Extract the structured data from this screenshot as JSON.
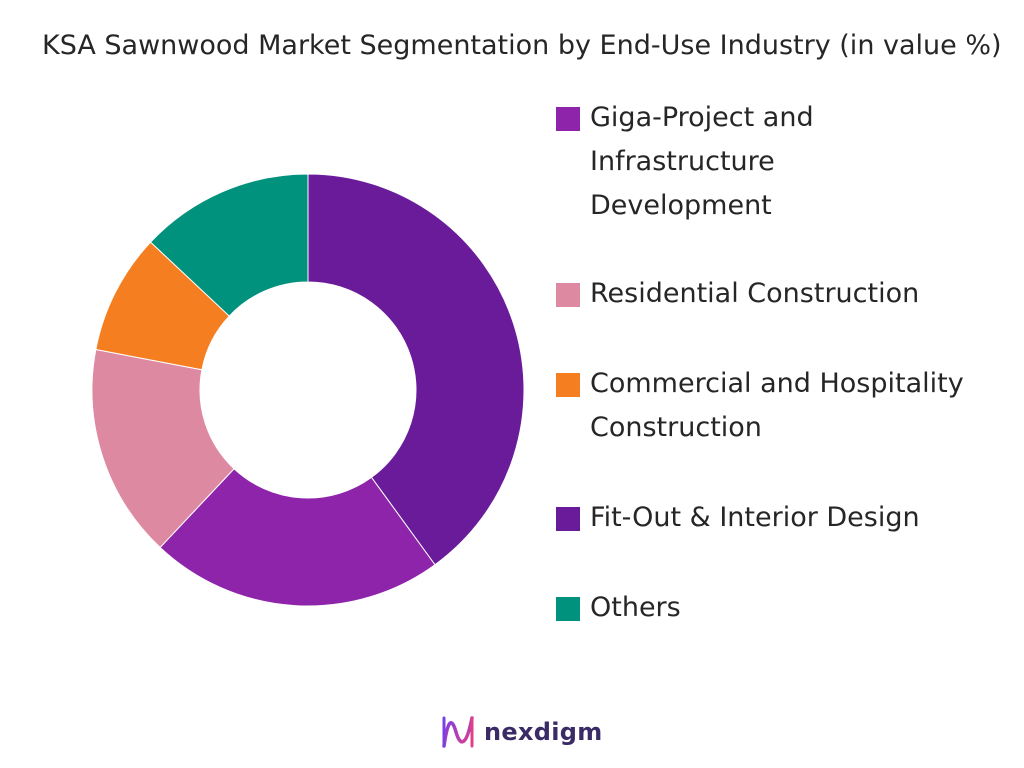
{
  "chart_data": {
    "type": "pie",
    "title": "KSA Sawnwood Market Segmentation by End-Use Industry (in value %)",
    "donut": true,
    "legend_position": "right",
    "slices": [
      {
        "label": "Fit-Out & Interior Design",
        "value": 40,
        "color": "#6a1b9a"
      },
      {
        "label": "Giga-Project and Infrastructure Development",
        "value": 22,
        "color": "#8e24aa"
      },
      {
        "label": "Residential Construction",
        "value": 16,
        "color": "#de89a2"
      },
      {
        "label": "Commercial and Hospitality Construction",
        "value": 9,
        "color": "#f57f20"
      },
      {
        "label": "Others",
        "value": 13,
        "color": "#00927c"
      }
    ],
    "legend": [
      {
        "label": "Giga-Project and Infrastructure Development",
        "color": "#8e24aa"
      },
      {
        "label": "Residential Construction",
        "color": "#de89a2"
      },
      {
        "label": "Commercial and Hospitality Construction",
        "color": "#f57f20"
      },
      {
        "label": "Fit-Out & Interior Design",
        "color": "#6a1b9a"
      },
      {
        "label": "Others",
        "color": "#00927c"
      }
    ]
  },
  "branding": {
    "logo_text": "nexdigm",
    "logo_icon": "nexdigm-wave-logo-icon"
  }
}
